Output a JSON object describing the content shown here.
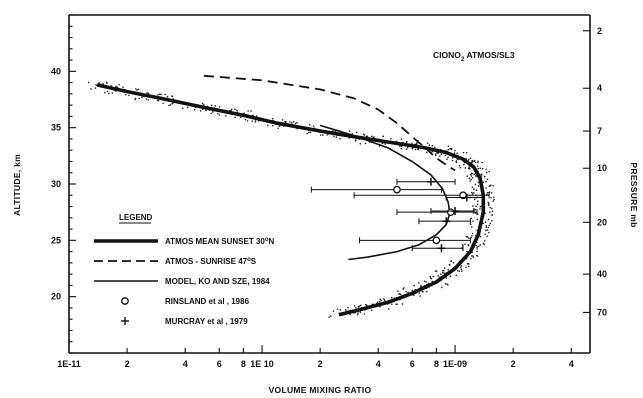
{
  "chart_data": {
    "type": "line",
    "title": "ClONO",
    "title_sub": "2",
    "title_suffix": " ATMOS/SL3",
    "xlabel": "VOLUME MIXING RATIO",
    "ylabel": "ALTITUDE, km",
    "y2label": "PRESSURE  mb",
    "x_scale": "log",
    "xlim": [
      1e-11,
      5e-09
    ],
    "ylim": [
      15,
      45
    ],
    "y2_scale": "pressure",
    "grid": false,
    "legend_placement": "left",
    "legend_title": "LEGEND",
    "x_ticks": [
      {
        "value": 1e-11,
        "label": "1E-11"
      },
      {
        "value": 2e-11,
        "label": "2"
      },
      {
        "value": 4e-11,
        "label": "4"
      },
      {
        "value": 6e-11,
        "label": "6"
      },
      {
        "value": 8e-11,
        "label": "8"
      },
      {
        "value": 1e-10,
        "label": "1E 10"
      },
      {
        "value": 2e-10,
        "label": "2"
      },
      {
        "value": 4e-10,
        "label": "4"
      },
      {
        "value": 6e-10,
        "label": "6"
      },
      {
        "value": 8e-10,
        "label": "8"
      },
      {
        "value": 1e-09,
        "label": "1E-09"
      },
      {
        "value": 2e-09,
        "label": "2"
      },
      {
        "value": 4e-09,
        "label": "4"
      }
    ],
    "y_ticks": [
      {
        "value": 20,
        "label": "20"
      },
      {
        "value": 25,
        "label": "25"
      },
      {
        "value": 30,
        "label": "30"
      },
      {
        "value": 35,
        "label": "35"
      },
      {
        "value": 40,
        "label": "40"
      }
    ],
    "y2_ticks": [
      {
        "altitude": 43.6,
        "label": "2"
      },
      {
        "altitude": 38.5,
        "label": "4"
      },
      {
        "altitude": 34.7,
        "label": "7"
      },
      {
        "altitude": 31.4,
        "label": "10"
      },
      {
        "altitude": 26.6,
        "label": "20"
      },
      {
        "altitude": 22.0,
        "label": "40"
      },
      {
        "altitude": 18.6,
        "label": "70"
      }
    ],
    "series": [
      {
        "name": "ATMOS  MEAN SUNSET 30",
        "name_sup": "o",
        "name_suffix": "N",
        "style": "thick-scatter",
        "points": [
          [
            1.4e-11,
            38.8
          ],
          [
            2e-11,
            38.2
          ],
          [
            3e-11,
            37.6
          ],
          [
            5e-11,
            36.8
          ],
          [
            8e-11,
            36.1
          ],
          [
            1.2e-10,
            35.4
          ],
          [
            2e-10,
            34.7
          ],
          [
            3e-10,
            34.2
          ],
          [
            5e-10,
            33.6
          ],
          [
            7e-10,
            33.2
          ],
          [
            9e-10,
            32.8
          ],
          [
            1.1e-09,
            32.2
          ],
          [
            1.25e-09,
            31.5
          ],
          [
            1.35e-09,
            30.5
          ],
          [
            1.4e-09,
            29.0
          ],
          [
            1.4e-09,
            27.5
          ],
          [
            1.32e-09,
            25.5
          ],
          [
            1.2e-09,
            24.0
          ],
          [
            1e-09,
            22.5
          ],
          [
            8e-10,
            21.3
          ],
          [
            6e-10,
            20.3
          ],
          [
            4.5e-10,
            19.5
          ],
          [
            3.3e-10,
            18.9
          ],
          [
            2.5e-10,
            18.4
          ]
        ]
      },
      {
        "name": "ATMOS - SUNRISE 47",
        "name_sup": "o",
        "name_suffix": "S",
        "style": "dashed",
        "points": [
          [
            5e-11,
            39.6
          ],
          [
            1e-10,
            39.2
          ],
          [
            2e-10,
            38.4
          ],
          [
            3e-10,
            37.6
          ],
          [
            4e-10,
            36.6
          ],
          [
            5e-10,
            35.4
          ],
          [
            6e-10,
            34.2
          ],
          [
            7e-10,
            33.2
          ],
          [
            8e-10,
            32.3
          ],
          [
            9e-10,
            31.7
          ],
          [
            1e-09,
            31.2
          ]
        ]
      },
      {
        "name": "MODEL, KO AND SZE, 1984",
        "style": "solid",
        "points": [
          [
            2e-10,
            35.2
          ],
          [
            3e-10,
            34.3
          ],
          [
            4.5e-10,
            33.2
          ],
          [
            6e-10,
            32.0
          ],
          [
            7.5e-10,
            30.8
          ],
          [
            8.6e-10,
            29.6
          ],
          [
            9.2e-10,
            28.4
          ],
          [
            9.4e-10,
            27.4
          ],
          [
            9e-10,
            26.4
          ],
          [
            8e-10,
            25.5
          ],
          [
            6.5e-10,
            24.6
          ],
          [
            5e-10,
            24.0
          ],
          [
            3.5e-10,
            23.5
          ],
          [
            2.8e-10,
            23.3
          ]
        ]
      },
      {
        "name": "RINSLAND et al , 1986",
        "style": "circle",
        "points": [
          {
            "x": 5e-10,
            "y": 29.5,
            "xmin": 1.8e-10,
            "xmax": 8.5e-10
          },
          {
            "x": 1.1e-09,
            "y": 29.0,
            "xmin": 3e-10,
            "xmax": 1.5e-09
          },
          {
            "x": 9.5e-10,
            "y": 27.5,
            "xmin": 5e-10,
            "xmax": 1.3e-09
          },
          {
            "x": 8e-10,
            "y": 25.0,
            "xmin": 3.2e-10,
            "xmax": 1.2e-09
          }
        ]
      },
      {
        "name": "MURCRAY et al , 1979",
        "style": "plus",
        "points": [
          {
            "x": 7.5e-10,
            "y": 30.2,
            "xmin": 5e-10,
            "xmax": 1e-09
          },
          {
            "x": 1.15e-09,
            "y": 28.8,
            "xmin": 9e-10,
            "xmax": 1.4e-09
          },
          {
            "x": 1e-09,
            "y": 27.6,
            "xmin": 7.5e-10,
            "xmax": 1.25e-09
          },
          {
            "x": 9e-10,
            "y": 26.7,
            "xmin": 6.5e-10,
            "xmax": 1.2e-09
          },
          {
            "x": 8.5e-10,
            "y": 24.3,
            "xmin": 6e-10,
            "xmax": 1.1e-09
          }
        ]
      }
    ]
  }
}
